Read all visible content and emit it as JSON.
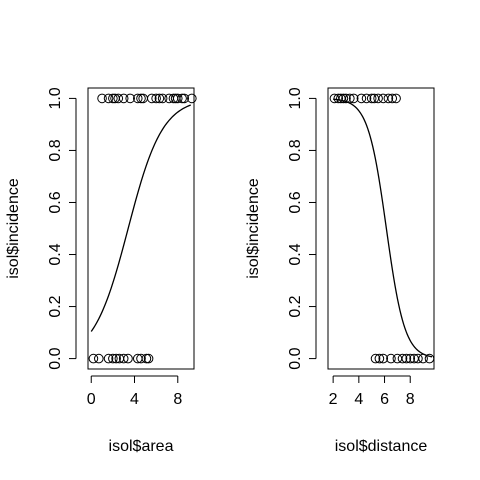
{
  "chart_data": [
    {
      "type": "scatter",
      "xlabel": "isol$area",
      "ylabel": "isol$incidence",
      "xlim": [
        -0.3,
        9.5
      ],
      "ylim": [
        -0.04,
        1.04
      ],
      "xticks": [
        "0",
        "4",
        "8"
      ],
      "xtick_values": [
        0,
        4,
        8
      ],
      "yticks": [
        "0.0",
        "0.2",
        "0.4",
        "0.6",
        "0.8",
        "1.0"
      ],
      "ytick_values": [
        0,
        0.2,
        0.4,
        0.6,
        0.8,
        1.0
      ],
      "points": {
        "x": [
          0.2,
          0.7,
          1.6,
          2.0,
          2.3,
          2.6,
          3.0,
          3.4,
          4.3,
          4.6,
          5.1,
          5.3,
          1.0,
          1.6,
          2.0,
          2.2,
          2.5,
          3.0,
          3.6,
          4.3,
          4.6,
          4.8,
          5.6,
          6.0,
          6.3,
          6.6,
          7.2,
          7.6,
          7.8,
          8.0,
          8.4,
          8.6,
          9.3
        ],
        "y": [
          0,
          0,
          0,
          0,
          0,
          0,
          0,
          0,
          0,
          0,
          0,
          0,
          1,
          1,
          1,
          1,
          1,
          1,
          1,
          1,
          1,
          1,
          1,
          1,
          1,
          1,
          1,
          1,
          1,
          1,
          1,
          1,
          1
        ]
      },
      "fit": {
        "model": "logistic",
        "intercept": -2.15,
        "slope": 0.63,
        "x_range": [
          0,
          9.2
        ]
      }
    },
    {
      "type": "scatter",
      "xlabel": "isol$distance",
      "ylabel": "isol$incidence",
      "xlim": [
        1.6,
        9.85
      ],
      "ylim": [
        -0.04,
        1.04
      ],
      "xticks": [
        "2",
        "4",
        "6",
        "8"
      ],
      "xtick_values": [
        2,
        4,
        6,
        8
      ],
      "yticks": [
        "0.0",
        "0.2",
        "0.4",
        "0.6",
        "0.8",
        "1.0"
      ],
      "ytick_values": [
        0,
        0.2,
        0.4,
        0.6,
        0.8,
        1.0
      ],
      "points": {
        "x": [
          2.1,
          2.4,
          2.6,
          2.8,
          3.0,
          3.3,
          3.6,
          4.2,
          4.6,
          5.0,
          5.2,
          5.5,
          5.9,
          6.3,
          6.6,
          6.9,
          5.3,
          5.6,
          5.9,
          6.5,
          7.0,
          7.4,
          7.7,
          8.0,
          8.3,
          8.6,
          9.0,
          9.5
        ],
        "y": [
          1,
          1,
          1,
          1,
          1,
          1,
          1,
          1,
          1,
          1,
          1,
          1,
          1,
          1,
          1,
          1,
          0,
          0,
          0,
          0,
          0,
          0,
          0,
          0,
          0,
          0,
          0,
          0
        ]
      },
      "fit": {
        "model": "logistic",
        "intercept": 8.6,
        "slope": -1.4,
        "x_range": [
          2.0,
          9.7
        ]
      }
    }
  ]
}
